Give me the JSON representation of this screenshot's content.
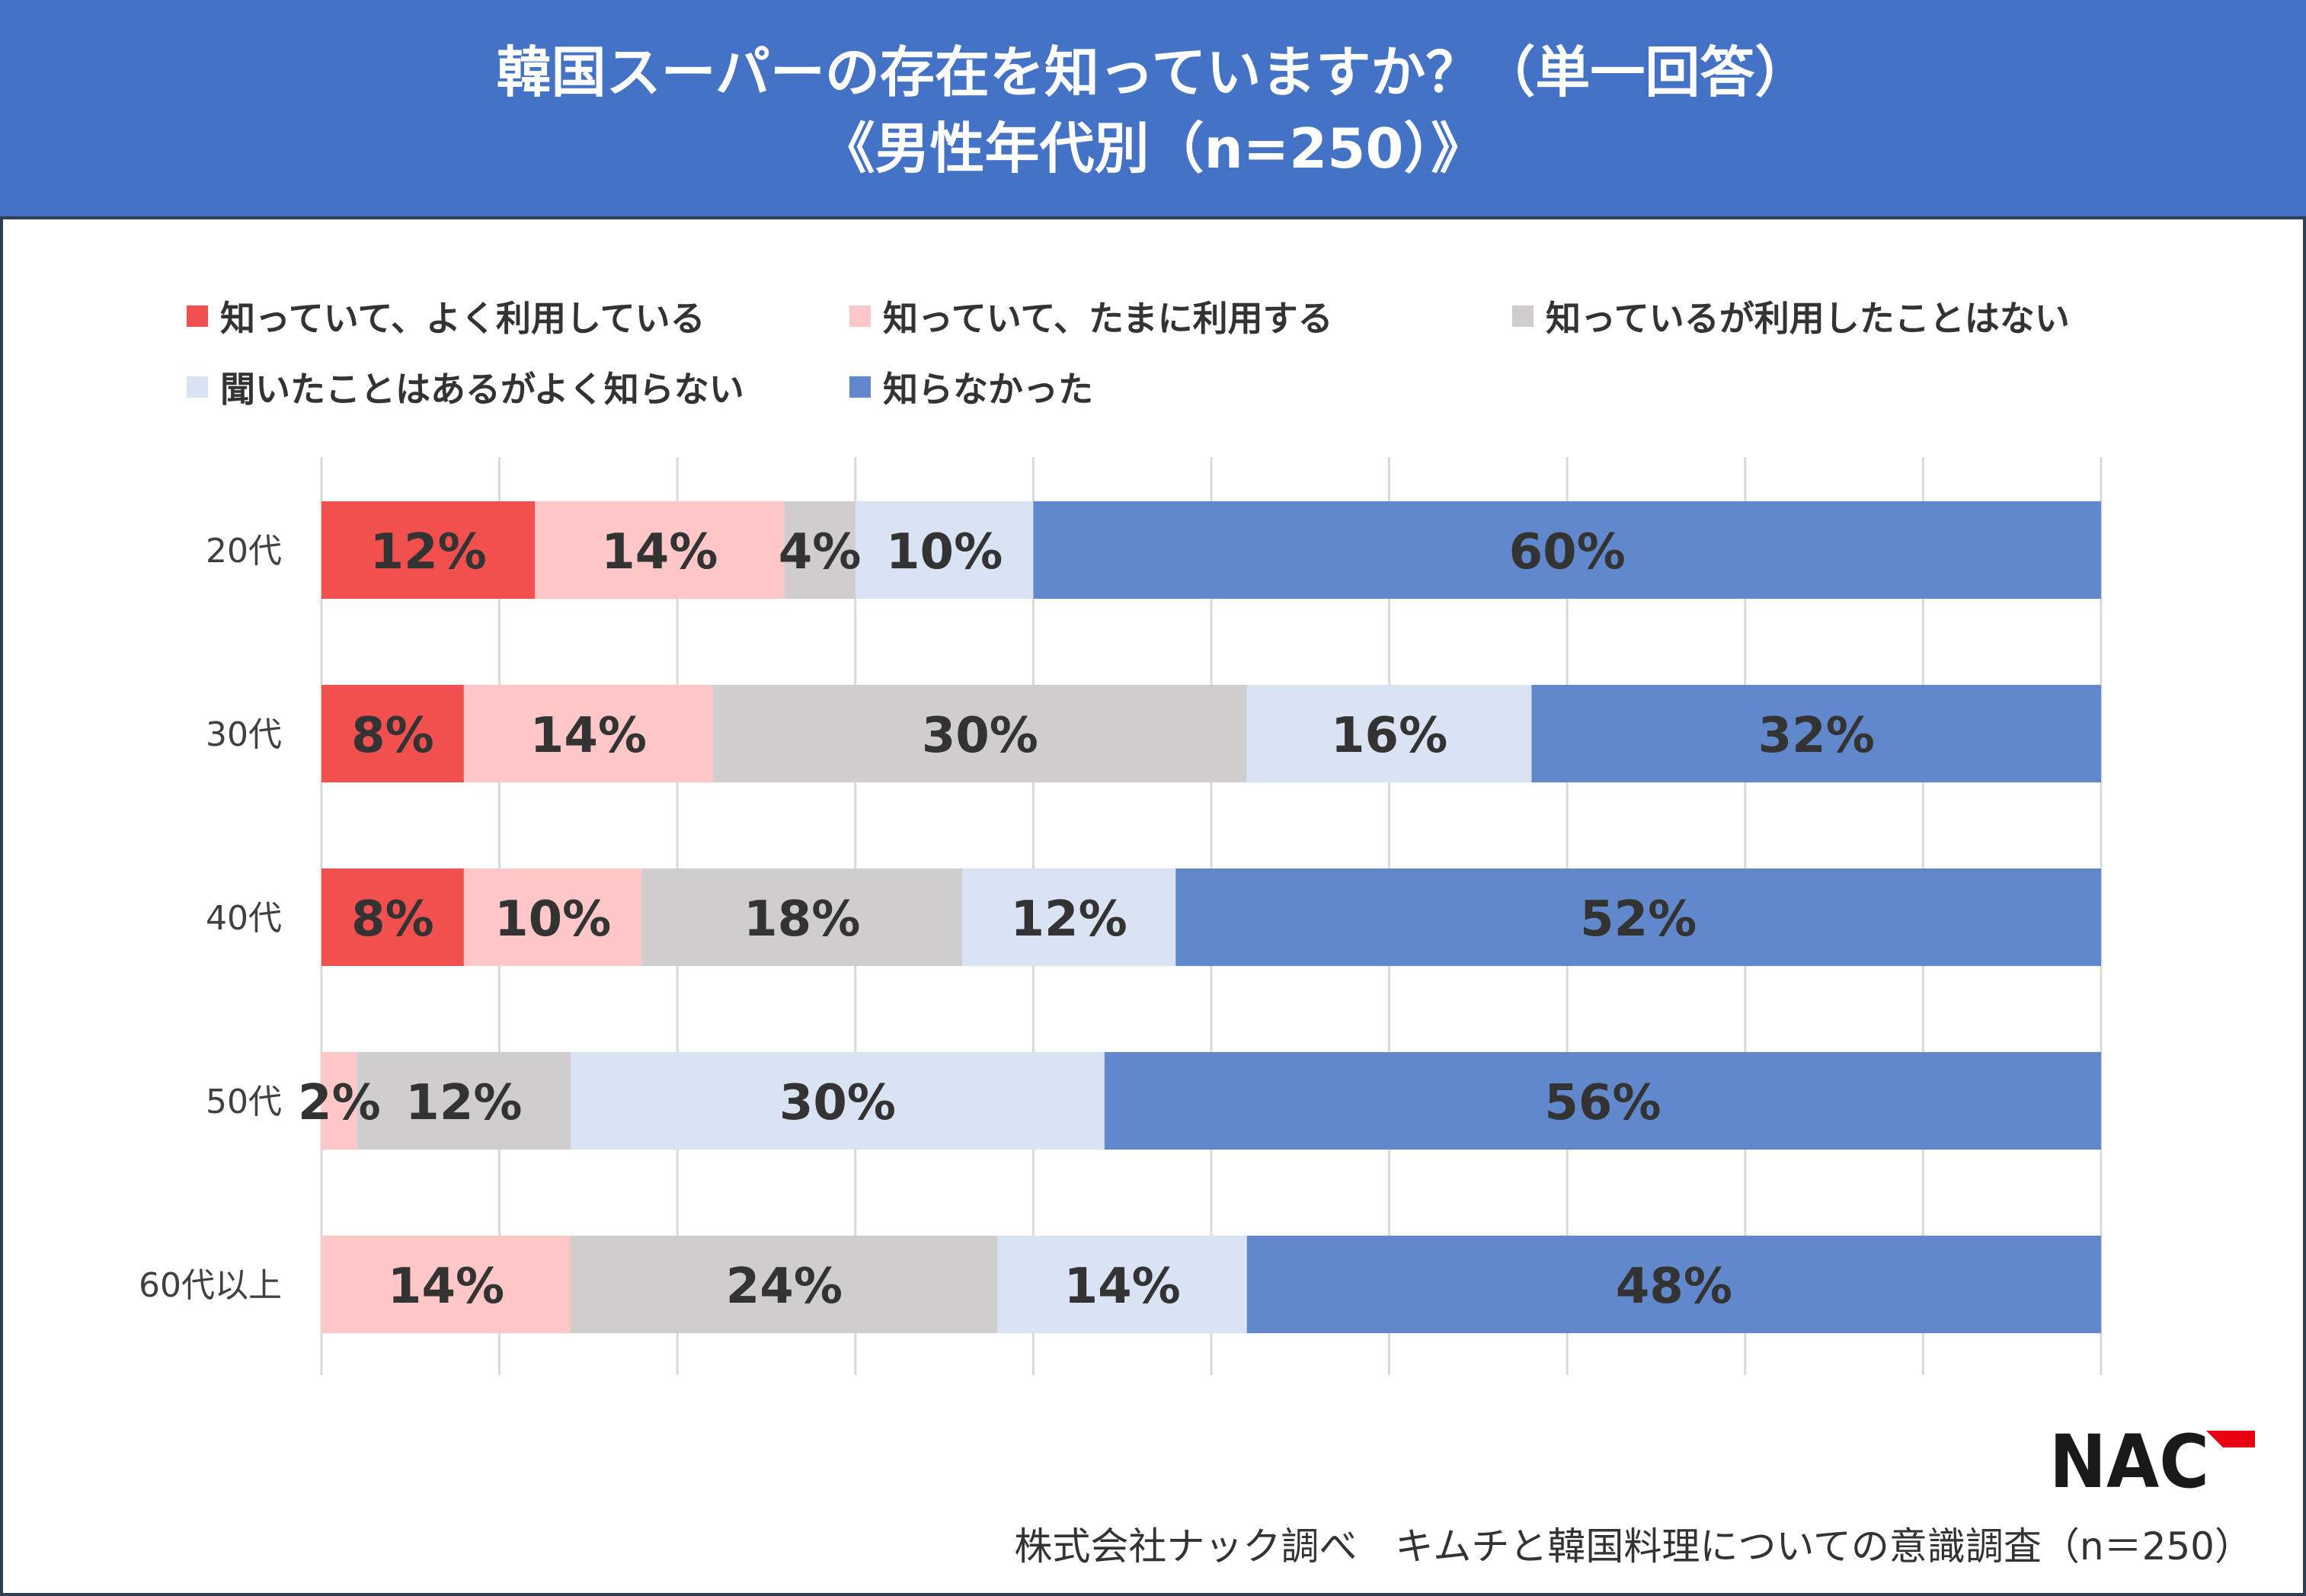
{
  "title": {
    "line1": "韓国スーパーの存在を知っていますか？（単一回答）",
    "line2": "《男性年代別（n=250）》"
  },
  "legend": [
    {
      "label": "知っていて、よく利用している",
      "color": "#f24f4f"
    },
    {
      "label": "知っていて、たまに利用する",
      "color": "#ffc7c7"
    },
    {
      "label": "知っているが利用したことはない",
      "color": "#cfcdcd"
    },
    {
      "label": "聞いたことはあるがよく知らない",
      "color": "#dae3f3"
    },
    {
      "label": "知らなかった",
      "color": "#6288cc"
    }
  ],
  "chart_data": {
    "type": "bar",
    "orientation": "horizontal",
    "stacked": true,
    "percent": true,
    "categories": [
      "20代",
      "30代",
      "40代",
      "50代",
      "60代以上"
    ],
    "series": [
      {
        "name": "知っていて、よく利用している",
        "values": [
          12,
          8,
          8,
          0,
          0
        ],
        "color": "#f24f4f"
      },
      {
        "name": "知っていて、たまに利用する",
        "values": [
          14,
          14,
          10,
          2,
          14
        ],
        "color": "#ffc7c7"
      },
      {
        "name": "知っているが利用したことはない",
        "values": [
          4,
          30,
          18,
          12,
          24
        ],
        "color": "#cfcdcd"
      },
      {
        "name": "聞いたことはあるがよく知らない",
        "values": [
          10,
          16,
          12,
          30,
          14
        ],
        "color": "#dae3f3"
      },
      {
        "name": "知らなかった",
        "values": [
          60,
          32,
          52,
          56,
          48
        ],
        "color": "#6288cc"
      }
    ],
    "xlim": [
      0,
      100
    ],
    "grid": true,
    "legend_position": "top"
  },
  "logo_text": "NAC",
  "source": "株式会社ナック調べ　キムチと韓国料理についての意識調査（n＝250）"
}
